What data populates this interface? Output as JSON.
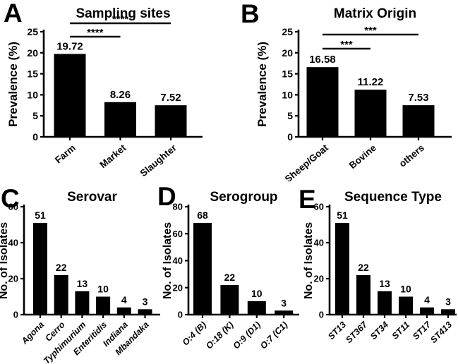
{
  "figure": {
    "colors": {
      "background": "#ffffff",
      "bar": "#000000",
      "axis": "#000000",
      "text": "#000000"
    },
    "panel_letters": [
      "A",
      "B",
      "C",
      "D",
      "E"
    ]
  },
  "chart_data": [
    {
      "panel": "A",
      "type": "bar",
      "title": "Sampling sites",
      "ylabel": "Prevalence (%)",
      "xlabel": "",
      "ylim": [
        0,
        25
      ],
      "yticks": [
        0,
        5,
        10,
        15,
        20,
        25
      ],
      "categories": [
        "Farm",
        "Market",
        "Slaughter"
      ],
      "values": [
        19.72,
        8.26,
        7.52
      ],
      "value_labels": [
        "19.72",
        "8.26",
        "7.52"
      ],
      "italic_categories": false,
      "grid": false,
      "legend": null,
      "significance": [
        {
          "from": 0,
          "to": 1,
          "label": "****"
        },
        {
          "from": 0,
          "to": 2,
          "label": "****"
        }
      ]
    },
    {
      "panel": "B",
      "type": "bar",
      "title": "Matrix Origin",
      "ylabel": "Prevalence (%)",
      "xlabel": "",
      "ylim": [
        0,
        25
      ],
      "yticks": [
        0,
        5,
        10,
        15,
        20,
        25
      ],
      "categories": [
        "Sheep/Goat",
        "Bovine",
        "others"
      ],
      "values": [
        16.58,
        11.22,
        7.53
      ],
      "value_labels": [
        "16.58",
        "11.22",
        "7.53"
      ],
      "italic_categories": false,
      "grid": false,
      "legend": null,
      "significance": [
        {
          "from": 0,
          "to": 1,
          "label": "***"
        },
        {
          "from": 0,
          "to": 2,
          "label": "***"
        }
      ]
    },
    {
      "panel": "C",
      "type": "bar",
      "title": "Serovar",
      "ylabel": "No. of Isolates",
      "xlabel": "",
      "ylim": [
        0,
        60
      ],
      "yticks": [
        0,
        20,
        40,
        60
      ],
      "categories": [
        "Agona",
        "Cerro",
        "Typhimurium",
        "Enteritidis",
        "Indiana",
        "Mbandaka"
      ],
      "values": [
        51,
        22,
        13,
        10,
        4,
        3
      ],
      "value_labels": [
        "51",
        "22",
        "13",
        "10",
        "4",
        "3"
      ],
      "italic_categories": true,
      "grid": false,
      "legend": null,
      "significance": []
    },
    {
      "panel": "D",
      "type": "bar",
      "title": "Serogroup",
      "ylabel": "No. of Isolates",
      "xlabel": "",
      "ylim": [
        0,
        80
      ],
      "yticks": [
        0,
        20,
        40,
        60,
        80
      ],
      "categories": [
        "O:4 (B)",
        "O:18 (K)",
        "O:9 (D1)",
        "O:7 (C1)"
      ],
      "values": [
        68,
        22,
        10,
        3
      ],
      "value_labels": [
        "68",
        "22",
        "10",
        "3"
      ],
      "italic_categories": true,
      "grid": false,
      "legend": null,
      "significance": []
    },
    {
      "panel": "E",
      "type": "bar",
      "title": "Sequence Type",
      "ylabel": "No. of Isolates",
      "xlabel": "",
      "ylim": [
        0,
        60
      ],
      "yticks": [
        0,
        20,
        40,
        60
      ],
      "categories": [
        "ST13",
        "ST367",
        "ST34",
        "ST11",
        "ST17",
        "ST413"
      ],
      "values": [
        51,
        22,
        13,
        10,
        4,
        3
      ],
      "value_labels": [
        "51",
        "22",
        "13",
        "10",
        "4",
        "3"
      ],
      "italic_categories": true,
      "grid": false,
      "legend": null,
      "significance": []
    }
  ]
}
